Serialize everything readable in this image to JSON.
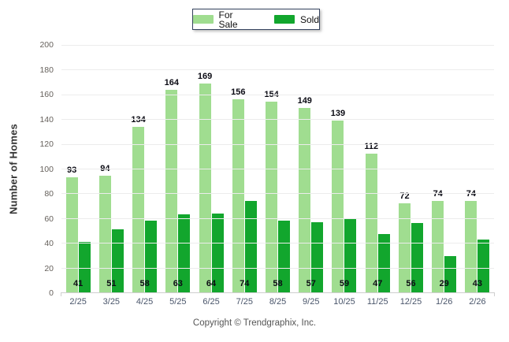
{
  "legend": {
    "items": [
      {
        "label": "For Sale",
        "color": "#a0dd90"
      },
      {
        "label": "Sold",
        "color": "#12a62d"
      }
    ]
  },
  "chart_data": {
    "type": "bar",
    "title": "",
    "categories": [
      "2/25",
      "3/25",
      "4/25",
      "5/25",
      "6/25",
      "7/25",
      "8/25",
      "9/25",
      "10/25",
      "11/25",
      "12/25",
      "1/26",
      "2/26"
    ],
    "series": [
      {
        "name": "For Sale",
        "color": "#a0dd90",
        "values": [
          93,
          94,
          134,
          164,
          169,
          156,
          154,
          149,
          139,
          112,
          72,
          74,
          74
        ]
      },
      {
        "name": "Sold",
        "color": "#12a62d",
        "values": [
          41,
          51,
          58,
          63,
          64,
          74,
          58,
          57,
          59,
          47,
          56,
          29,
          43
        ]
      }
    ],
    "xlabel": "",
    "ylabel": "Number of Homes",
    "ylim": [
      0,
      200
    ],
    "yticks": [
      0,
      20,
      40,
      60,
      80,
      100,
      120,
      140,
      160,
      180,
      200
    ],
    "grid": true,
    "legend_position": "top-center"
  },
  "footer": {
    "text": "Copyright © Trendgraphix, Inc."
  }
}
